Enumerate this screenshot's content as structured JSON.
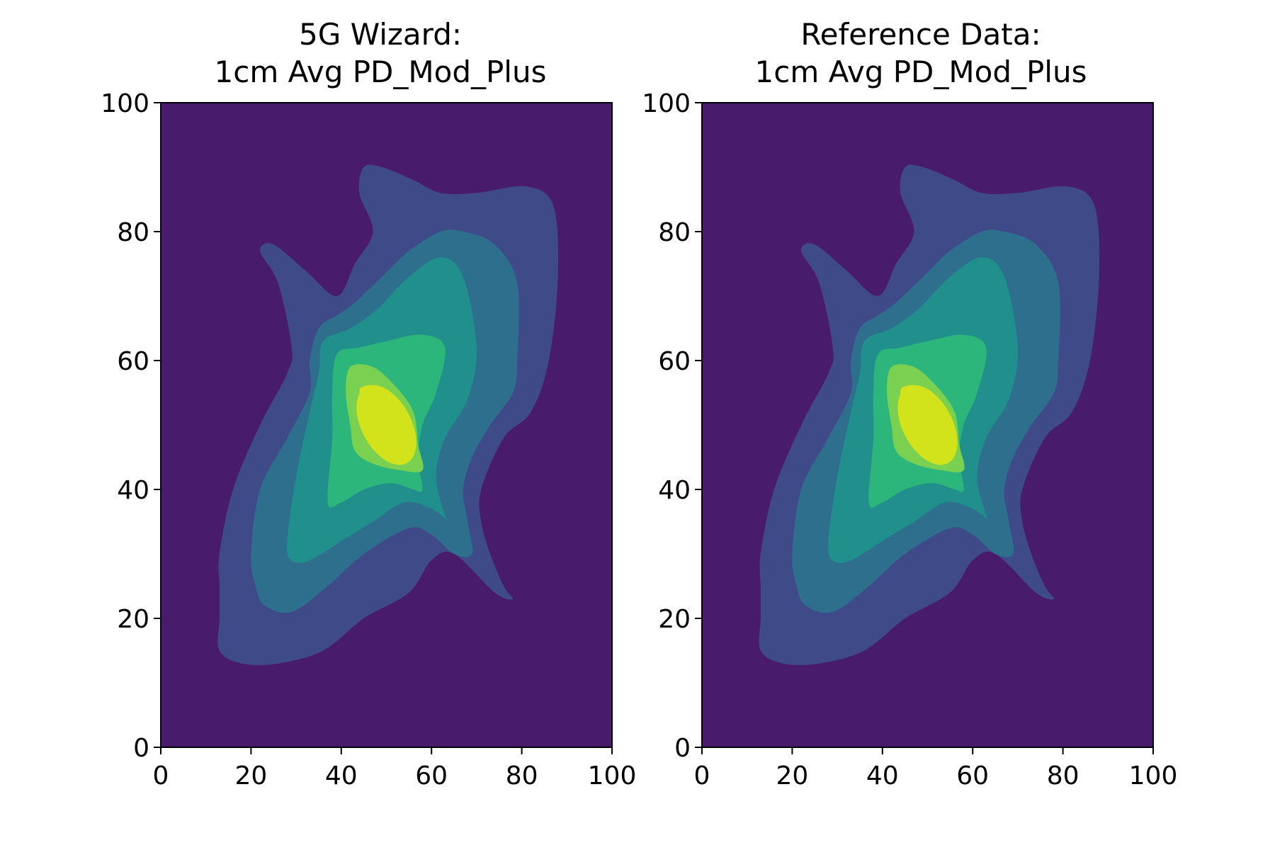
{
  "chart_data": [
    {
      "type": "contour",
      "title_lines": [
        "5G Wizard:",
        "1cm Avg PD_Mod_Plus"
      ],
      "xlabel": "",
      "ylabel": "",
      "xlim": [
        0,
        100
      ],
      "ylim": [
        0,
        100
      ],
      "x_ticks": [
        "0",
        "20",
        "40",
        "60",
        "80",
        "100"
      ],
      "y_ticks": [
        "0",
        "20",
        "40",
        "60",
        "80",
        "100"
      ],
      "grid": false,
      "colormap": "viridis",
      "level_colors": [
        "#481b6b",
        "#3f4a89",
        "#2e6f8e",
        "#218f8b",
        "#2cb67b",
        "#7ad151",
        "#d2e21b"
      ],
      "peak": {
        "x": 50,
        "y": 50
      },
      "contours": [
        {
          "level": 1,
          "points": [
            [
              13,
              30
            ],
            [
              16,
              40
            ],
            [
              22,
              50
            ],
            [
              28,
              58
            ],
            [
              29,
              62
            ],
            [
              26,
              72
            ],
            [
              22,
              77
            ],
            [
              25,
              78
            ],
            [
              32,
              74
            ],
            [
              39,
              70
            ],
            [
              43,
              75
            ],
            [
              47,
              80
            ],
            [
              44,
              86
            ],
            [
              45,
              90
            ],
            [
              49,
              90
            ],
            [
              56,
              88
            ],
            [
              62,
              86
            ],
            [
              70,
              86
            ],
            [
              81,
              87
            ],
            [
              87,
              84
            ],
            [
              88,
              73
            ],
            [
              86,
              60
            ],
            [
              82,
              52
            ],
            [
              76,
              48
            ],
            [
              71,
              40
            ],
            [
              71,
              35
            ],
            [
              73,
              30
            ],
            [
              76,
              25
            ],
            [
              78,
              23
            ],
            [
              74,
              24
            ],
            [
              65,
              30
            ],
            [
              60,
              29
            ],
            [
              55,
              24
            ],
            [
              45,
              20
            ],
            [
              36,
              15
            ],
            [
              26,
              13
            ],
            [
              18,
              13
            ],
            [
              13,
              15
            ],
            [
              13,
              20
            ],
            [
              13,
              25
            ]
          ]
        },
        {
          "level": 2,
          "points": [
            [
              20,
              30
            ],
            [
              22,
              40
            ],
            [
              28,
              48
            ],
            [
              33,
              55
            ],
            [
              33,
              60
            ],
            [
              35,
              65
            ],
            [
              39,
              67
            ],
            [
              43,
              69
            ],
            [
              49,
              73
            ],
            [
              55,
              77
            ],
            [
              62,
              80
            ],
            [
              67,
              80
            ],
            [
              74,
              78
            ],
            [
              79,
              72
            ],
            [
              79,
              60
            ],
            [
              78,
              55
            ],
            [
              73,
              50
            ],
            [
              69,
              45
            ],
            [
              67,
              40
            ],
            [
              68,
              35
            ],
            [
              69,
              30
            ],
            [
              65,
              30
            ],
            [
              60,
              33
            ],
            [
              55,
              34
            ],
            [
              45,
              30
            ],
            [
              37,
              25
            ],
            [
              29,
              21
            ],
            [
              23,
              22
            ],
            [
              21,
              25
            ]
          ]
        },
        {
          "level": 3,
          "points": [
            [
              28,
              32
            ],
            [
              30,
              42
            ],
            [
              33,
              52
            ],
            [
              35,
              58
            ],
            [
              36,
              63
            ],
            [
              42,
              65
            ],
            [
              48,
              68
            ],
            [
              55,
              73
            ],
            [
              62,
              76
            ],
            [
              67,
              73
            ],
            [
              70,
              62
            ],
            [
              68,
              54
            ],
            [
              63,
              48
            ],
            [
              61,
              42
            ],
            [
              63,
              36
            ],
            [
              64,
              35
            ],
            [
              60,
              37
            ],
            [
              54,
              38
            ],
            [
              47,
              35
            ],
            [
              40,
              32
            ],
            [
              33,
              29
            ],
            [
              29,
              29
            ]
          ]
        },
        {
          "level": 4,
          "points": [
            [
              37,
              38
            ],
            [
              38,
              48
            ],
            [
              38,
              55
            ],
            [
              39,
              61
            ],
            [
              44,
              62
            ],
            [
              50,
              63
            ],
            [
              58,
              64
            ],
            [
              63,
              62
            ],
            [
              61,
              55
            ],
            [
              58,
              50
            ],
            [
              57,
              45
            ],
            [
              58,
              40
            ],
            [
              56,
              40
            ],
            [
              51,
              41
            ],
            [
              45,
              40
            ],
            [
              40,
              38
            ]
          ]
        },
        {
          "level": 5,
          "points": [
            [
              41,
              55
            ],
            [
              42,
              50
            ],
            [
              43,
              46
            ],
            [
              47,
              44
            ],
            [
              53,
              43
            ],
            [
              58,
              43
            ],
            [
              57,
              47
            ],
            [
              56,
              52
            ],
            [
              52,
              56
            ],
            [
              47,
              59
            ],
            [
              42,
              59
            ]
          ]
        },
        {
          "level": 6,
          "points": [
            [
              44,
              55
            ],
            [
              45,
              51
            ],
            [
              47,
              48
            ],
            [
              50,
              46
            ],
            [
              55,
              45
            ],
            [
              56,
              47
            ],
            [
              54,
              51
            ],
            [
              51,
              54
            ],
            [
              48,
              56
            ],
            [
              45,
              56
            ]
          ]
        }
      ]
    },
    {
      "type": "contour",
      "title_lines": [
        "Reference Data:",
        "1cm Avg PD_Mod_Plus"
      ],
      "xlabel": "",
      "ylabel": "",
      "xlim": [
        0,
        100
      ],
      "ylim": [
        0,
        100
      ],
      "x_ticks": [
        "0",
        "20",
        "40",
        "60",
        "80",
        "100"
      ],
      "y_ticks": [
        "0",
        "20",
        "40",
        "60",
        "80",
        "100"
      ],
      "grid": false,
      "colormap": "viridis",
      "level_colors": [
        "#481b6b",
        "#3f4a89",
        "#2e6f8e",
        "#218f8b",
        "#2cb67b",
        "#7ad151",
        "#d2e21b"
      ],
      "peak": {
        "x": 50,
        "y": 50
      },
      "contours": [
        {
          "level": 1,
          "points": [
            [
              13,
              30
            ],
            [
              16,
              40
            ],
            [
              22,
              50
            ],
            [
              28,
              58
            ],
            [
              29,
              62
            ],
            [
              26,
              72
            ],
            [
              22,
              77
            ],
            [
              25,
              78
            ],
            [
              32,
              74
            ],
            [
              39,
              70
            ],
            [
              43,
              75
            ],
            [
              47,
              80
            ],
            [
              44,
              86
            ],
            [
              45,
              90
            ],
            [
              49,
              90
            ],
            [
              56,
              88
            ],
            [
              62,
              86
            ],
            [
              70,
              86
            ],
            [
              81,
              87
            ],
            [
              87,
              84
            ],
            [
              88,
              73
            ],
            [
              86,
              60
            ],
            [
              82,
              52
            ],
            [
              76,
              48
            ],
            [
              71,
              40
            ],
            [
              71,
              35
            ],
            [
              73,
              30
            ],
            [
              76,
              25
            ],
            [
              78,
              23
            ],
            [
              74,
              24
            ],
            [
              65,
              30
            ],
            [
              60,
              29
            ],
            [
              55,
              24
            ],
            [
              45,
              20
            ],
            [
              36,
              15
            ],
            [
              26,
              13
            ],
            [
              18,
              13
            ],
            [
              13,
              15
            ],
            [
              13,
              20
            ],
            [
              13,
              25
            ]
          ]
        },
        {
          "level": 2,
          "points": [
            [
              20,
              30
            ],
            [
              22,
              40
            ],
            [
              28,
              48
            ],
            [
              33,
              55
            ],
            [
              33,
              60
            ],
            [
              35,
              65
            ],
            [
              39,
              67
            ],
            [
              43,
              69
            ],
            [
              49,
              73
            ],
            [
              55,
              77
            ],
            [
              62,
              80
            ],
            [
              67,
              80
            ],
            [
              74,
              78
            ],
            [
              79,
              72
            ],
            [
              79,
              60
            ],
            [
              78,
              55
            ],
            [
              73,
              50
            ],
            [
              69,
              45
            ],
            [
              67,
              40
            ],
            [
              68,
              35
            ],
            [
              69,
              30
            ],
            [
              65,
              30
            ],
            [
              60,
              33
            ],
            [
              55,
              34
            ],
            [
              45,
              30
            ],
            [
              37,
              25
            ],
            [
              29,
              21
            ],
            [
              23,
              22
            ],
            [
              21,
              25
            ]
          ]
        },
        {
          "level": 3,
          "points": [
            [
              28,
              32
            ],
            [
              30,
              42
            ],
            [
              33,
              52
            ],
            [
              35,
              58
            ],
            [
              36,
              63
            ],
            [
              42,
              65
            ],
            [
              48,
              68
            ],
            [
              55,
              73
            ],
            [
              62,
              76
            ],
            [
              67,
              73
            ],
            [
              70,
              62
            ],
            [
              68,
              54
            ],
            [
              63,
              48
            ],
            [
              61,
              42
            ],
            [
              63,
              36
            ],
            [
              64,
              35
            ],
            [
              60,
              37
            ],
            [
              54,
              38
            ],
            [
              47,
              35
            ],
            [
              40,
              32
            ],
            [
              33,
              29
            ],
            [
              29,
              29
            ]
          ]
        },
        {
          "level": 4,
          "points": [
            [
              37,
              38
            ],
            [
              38,
              48
            ],
            [
              38,
              55
            ],
            [
              39,
              61
            ],
            [
              44,
              62
            ],
            [
              50,
              63
            ],
            [
              58,
              64
            ],
            [
              63,
              62
            ],
            [
              61,
              55
            ],
            [
              58,
              50
            ],
            [
              57,
              45
            ],
            [
              58,
              40
            ],
            [
              56,
              40
            ],
            [
              51,
              41
            ],
            [
              45,
              40
            ],
            [
              40,
              38
            ]
          ]
        },
        {
          "level": 5,
          "points": [
            [
              41,
              55
            ],
            [
              42,
              50
            ],
            [
              43,
              46
            ],
            [
              47,
              44
            ],
            [
              53,
              43
            ],
            [
              58,
              43
            ],
            [
              57,
              47
            ],
            [
              56,
              52
            ],
            [
              52,
              56
            ],
            [
              47,
              59
            ],
            [
              42,
              59
            ]
          ]
        },
        {
          "level": 6,
          "points": [
            [
              44,
              55
            ],
            [
              45,
              51
            ],
            [
              47,
              48
            ],
            [
              50,
              46
            ],
            [
              55,
              45
            ],
            [
              56,
              47
            ],
            [
              54,
              51
            ],
            [
              51,
              54
            ],
            [
              48,
              56
            ],
            [
              45,
              56
            ]
          ]
        }
      ]
    }
  ]
}
